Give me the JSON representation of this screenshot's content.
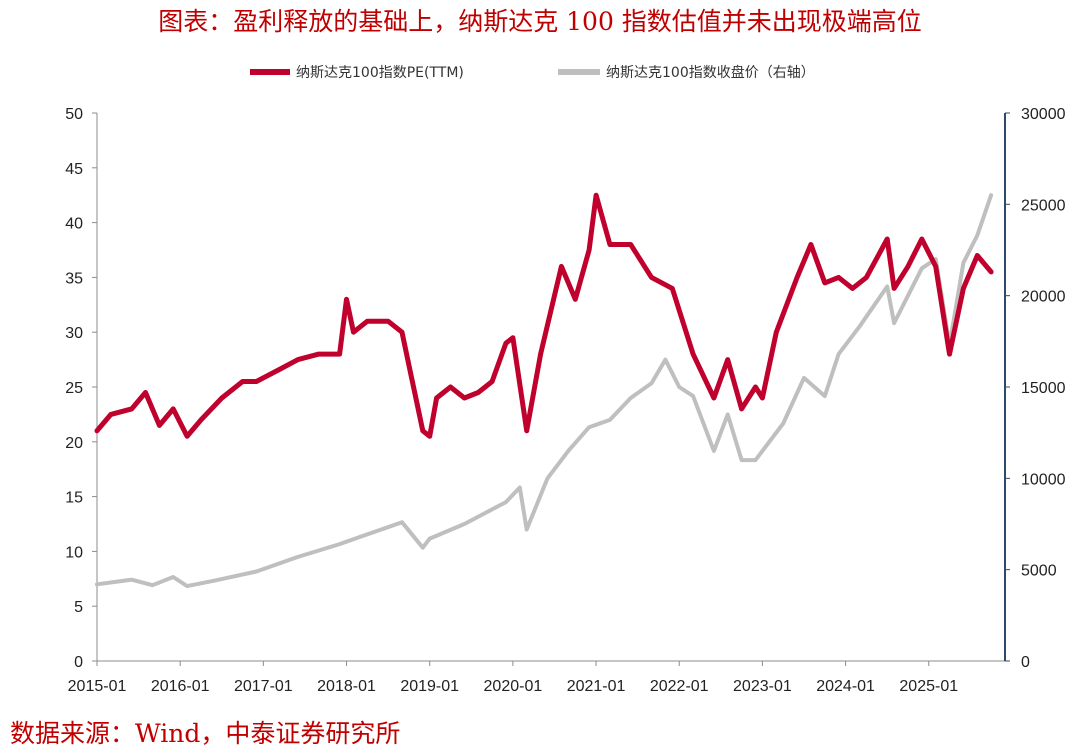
{
  "title": "图表：盈利释放的基础上，纳斯达克 100 指数估值并未出现极端高位",
  "source": "数据来源：Wind，中泰证券研究所",
  "chart_data": {
    "type": "line",
    "legend_position": "top-center",
    "grid": false,
    "x_ticks": [
      "2015-01",
      "2016-01",
      "2017-01",
      "2018-01",
      "2019-01",
      "2020-01",
      "2021-01",
      "2022-01",
      "2023-01",
      "2024-01",
      "2025-01"
    ],
    "y_left": {
      "ticks": [
        "0",
        "5",
        "10",
        "15",
        "20",
        "25",
        "30",
        "35",
        "40",
        "45",
        "50"
      ],
      "lim": [
        0,
        50
      ]
    },
    "y_right": {
      "ticks": [
        "0",
        "5000",
        "10000",
        "15000",
        "20000",
        "25000",
        "30000"
      ],
      "lim": [
        0,
        30000
      ]
    },
    "series": [
      {
        "name": "纳斯达克100指数PE(TTM)",
        "axis": "left",
        "color": "#C0002D",
        "points": [
          [
            "2015-01",
            21.0
          ],
          [
            "2015-03",
            22.5
          ],
          [
            "2015-06",
            23.0
          ],
          [
            "2015-08",
            24.5
          ],
          [
            "2015-10",
            21.5
          ],
          [
            "2015-12",
            23.0
          ],
          [
            "2016-02",
            20.5
          ],
          [
            "2016-04",
            22.0
          ],
          [
            "2016-07",
            24.0
          ],
          [
            "2016-10",
            25.5
          ],
          [
            "2016-12",
            25.5
          ],
          [
            "2017-03",
            26.5
          ],
          [
            "2017-06",
            27.5
          ],
          [
            "2017-09",
            28.0
          ],
          [
            "2017-12",
            28.0
          ],
          [
            "2018-01",
            33.0
          ],
          [
            "2018-02",
            30.0
          ],
          [
            "2018-04",
            31.0
          ],
          [
            "2018-07",
            31.0
          ],
          [
            "2018-09",
            30.0
          ],
          [
            "2018-10",
            27.0
          ],
          [
            "2018-12",
            21.0
          ],
          [
            "2019-01",
            20.5
          ],
          [
            "2019-02",
            24.0
          ],
          [
            "2019-04",
            25.0
          ],
          [
            "2019-06",
            24.0
          ],
          [
            "2019-08",
            24.5
          ],
          [
            "2019-10",
            25.5
          ],
          [
            "2019-12",
            29.0
          ],
          [
            "2020-01",
            29.5
          ],
          [
            "2020-03",
            21.0
          ],
          [
            "2020-05",
            28.0
          ],
          [
            "2020-08",
            36.0
          ],
          [
            "2020-10",
            33.0
          ],
          [
            "2020-12",
            37.5
          ],
          [
            "2021-01",
            42.5
          ],
          [
            "2021-03",
            38.0
          ],
          [
            "2021-06",
            38.0
          ],
          [
            "2021-09",
            35.0
          ],
          [
            "2021-12",
            34.0
          ],
          [
            "2022-01",
            32.0
          ],
          [
            "2022-03",
            28.0
          ],
          [
            "2022-06",
            24.0
          ],
          [
            "2022-08",
            27.5
          ],
          [
            "2022-10",
            23.0
          ],
          [
            "2022-12",
            25.0
          ],
          [
            "2023-01",
            24.0
          ],
          [
            "2023-03",
            30.0
          ],
          [
            "2023-06",
            35.0
          ],
          [
            "2023-08",
            38.0
          ],
          [
            "2023-10",
            34.5
          ],
          [
            "2023-12",
            35.0
          ],
          [
            "2024-02",
            34.0
          ],
          [
            "2024-04",
            35.0
          ],
          [
            "2024-07",
            38.5
          ],
          [
            "2024-08",
            34.0
          ],
          [
            "2024-10",
            36.0
          ],
          [
            "2024-12",
            38.5
          ],
          [
            "2025-02",
            36.0
          ],
          [
            "2025-04",
            28.0
          ],
          [
            "2025-06",
            34.0
          ],
          [
            "2025-08",
            37.0
          ],
          [
            "2025-10",
            35.5
          ]
        ]
      },
      {
        "name": "纳斯达克100指数收盘价（右轴）",
        "axis": "right",
        "color": "#BFBFBF",
        "points": [
          [
            "2015-01",
            4200
          ],
          [
            "2015-06",
            4450
          ],
          [
            "2015-09",
            4150
          ],
          [
            "2015-12",
            4600
          ],
          [
            "2016-02",
            4100
          ],
          [
            "2016-06",
            4400
          ],
          [
            "2016-12",
            4900
          ],
          [
            "2017-06",
            5700
          ],
          [
            "2017-12",
            6400
          ],
          [
            "2018-03",
            6800
          ],
          [
            "2018-09",
            7600
          ],
          [
            "2018-12",
            6200
          ],
          [
            "2019-01",
            6700
          ],
          [
            "2019-06",
            7500
          ],
          [
            "2019-12",
            8700
          ],
          [
            "2020-02",
            9500
          ],
          [
            "2020-03",
            7200
          ],
          [
            "2020-06",
            10000
          ],
          [
            "2020-09",
            11500
          ],
          [
            "2020-12",
            12800
          ],
          [
            "2021-03",
            13200
          ],
          [
            "2021-06",
            14400
          ],
          [
            "2021-09",
            15200
          ],
          [
            "2021-11",
            16500
          ],
          [
            "2022-01",
            15000
          ],
          [
            "2022-03",
            14500
          ],
          [
            "2022-06",
            11500
          ],
          [
            "2022-08",
            13500
          ],
          [
            "2022-10",
            11000
          ],
          [
            "2022-12",
            11000
          ],
          [
            "2023-01",
            11500
          ],
          [
            "2023-04",
            13000
          ],
          [
            "2023-07",
            15500
          ],
          [
            "2023-10",
            14500
          ],
          [
            "2023-12",
            16800
          ],
          [
            "2024-03",
            18300
          ],
          [
            "2024-07",
            20500
          ],
          [
            "2024-08",
            18500
          ],
          [
            "2024-12",
            21500
          ],
          [
            "2025-02",
            22000
          ],
          [
            "2025-04",
            17300
          ],
          [
            "2025-06",
            21800
          ],
          [
            "2025-08",
            23300
          ],
          [
            "2025-10",
            25500
          ]
        ]
      }
    ]
  }
}
